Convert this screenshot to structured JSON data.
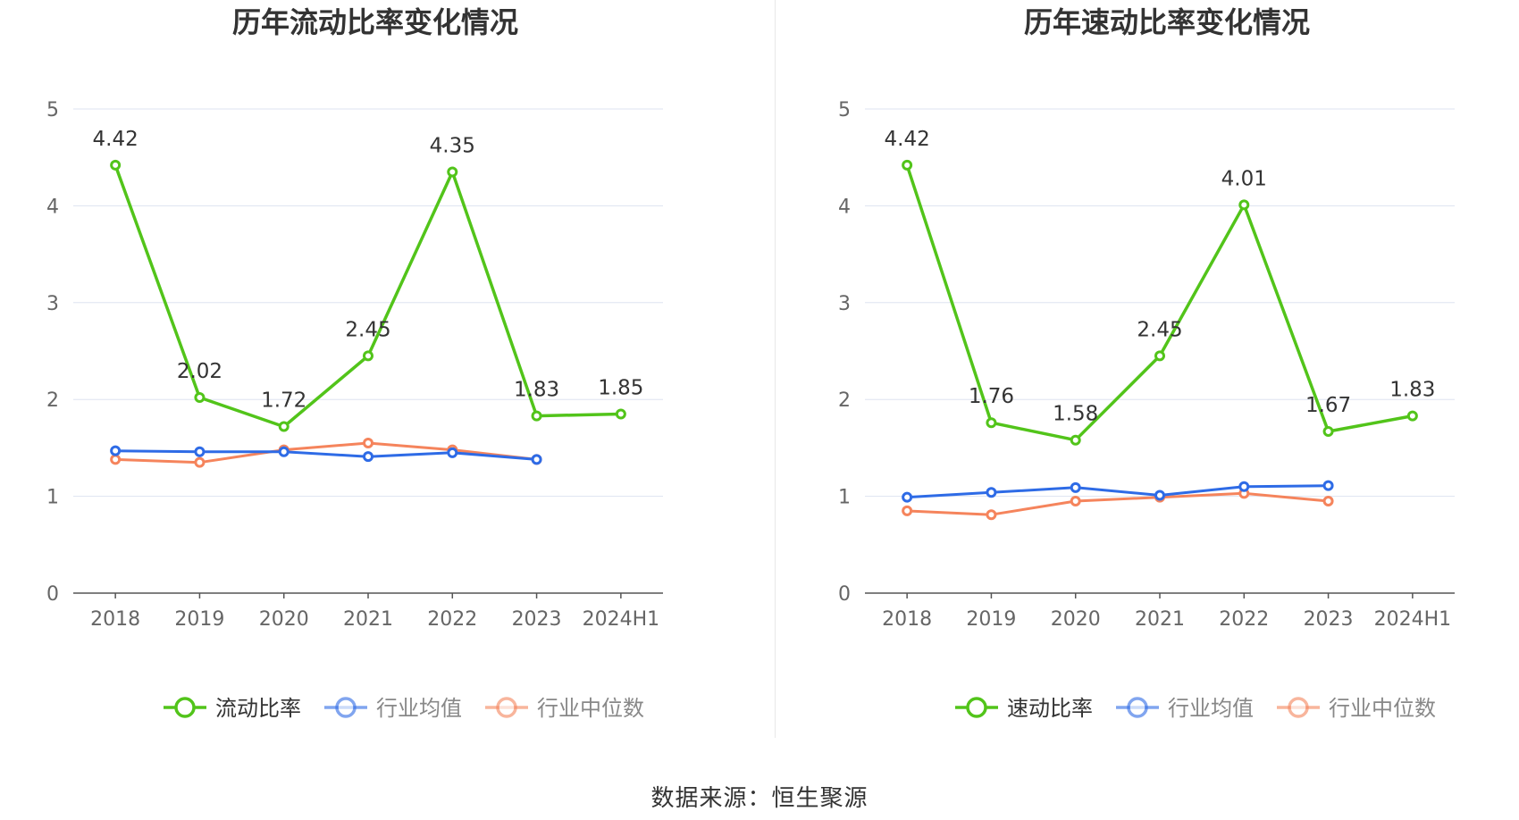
{
  "source_text": "数据来源：恒生聚源",
  "chart_data": [
    {
      "type": "line",
      "title": "历年流动比率变化情况",
      "categories": [
        "2018",
        "2019",
        "2020",
        "2021",
        "2022",
        "2023",
        "2024H1"
      ],
      "y_ticks": [
        "0",
        "1",
        "2",
        "3",
        "4",
        "5"
      ],
      "ylim": [
        0,
        5
      ],
      "grid": true,
      "legend_position": "bottom-center",
      "series": [
        {
          "name": "流动比率",
          "color": "#52c41a",
          "labeled": true,
          "values": [
            4.42,
            2.02,
            1.72,
            2.45,
            4.35,
            1.83,
            1.85
          ],
          "labels": [
            "4.42",
            "2.02",
            "1.72",
            "2.45",
            "4.35",
            "1.83",
            "1.85"
          ]
        },
        {
          "name": "行业均值",
          "color": "#2e6be6",
          "labeled": false,
          "values": [
            1.47,
            1.46,
            1.46,
            1.41,
            1.45,
            1.38,
            null
          ]
        },
        {
          "name": "行业中位数",
          "color": "#f5845c",
          "labeled": false,
          "values": [
            1.38,
            1.35,
            1.48,
            1.55,
            1.48,
            1.38,
            null
          ]
        }
      ]
    },
    {
      "type": "line",
      "title": "历年速动比率变化情况",
      "categories": [
        "2018",
        "2019",
        "2020",
        "2021",
        "2022",
        "2023",
        "2024H1"
      ],
      "y_ticks": [
        "0",
        "1",
        "2",
        "3",
        "4",
        "5"
      ],
      "ylim": [
        0,
        5
      ],
      "grid": true,
      "legend_position": "bottom-center",
      "series": [
        {
          "name": "速动比率",
          "color": "#52c41a",
          "labeled": true,
          "values": [
            4.42,
            1.76,
            1.58,
            2.45,
            4.01,
            1.67,
            1.83
          ],
          "labels": [
            "4.42",
            "1.76",
            "1.58",
            "2.45",
            "4.01",
            "1.67",
            "1.83"
          ]
        },
        {
          "name": "行业均值",
          "color": "#2e6be6",
          "labeled": false,
          "values": [
            0.99,
            1.04,
            1.09,
            1.01,
            1.1,
            1.11,
            null
          ]
        },
        {
          "name": "行业中位数",
          "color": "#f5845c",
          "labeled": false,
          "values": [
            0.85,
            0.81,
            0.95,
            0.99,
            1.03,
            0.95,
            null
          ]
        }
      ]
    }
  ]
}
